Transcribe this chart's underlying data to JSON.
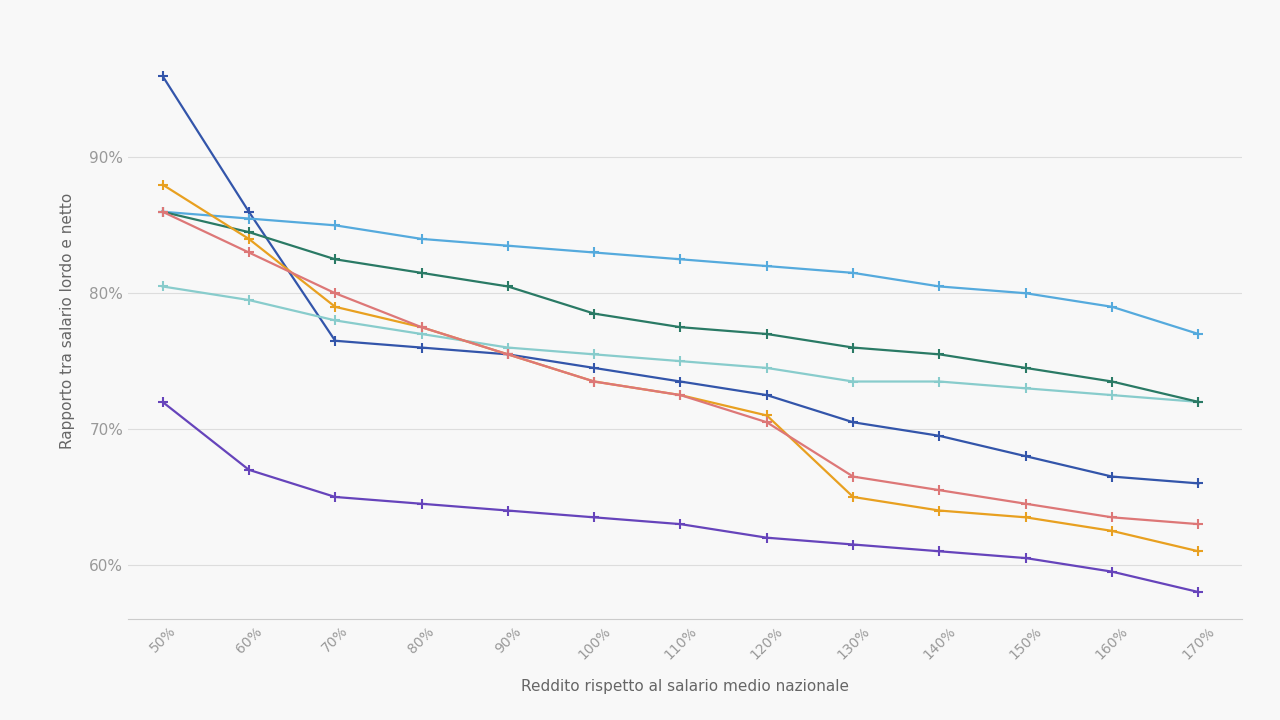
{
  "xlabel": "Reddito rispetto al salario medio nazionale",
  "ylabel": "Rapporto tra salario lordo e netto",
  "x_values": [
    50,
    60,
    70,
    80,
    90,
    100,
    110,
    120,
    130,
    140,
    150,
    160,
    170
  ],
  "series": [
    {
      "name": "darkblue",
      "color": "#3355aa",
      "values": [
        96.0,
        86.0,
        76.5,
        76.0,
        75.5,
        74.5,
        73.5,
        72.5,
        70.5,
        69.5,
        68.0,
        66.5,
        66.0
      ]
    },
    {
      "name": "lightblue",
      "color": "#55aadd",
      "values": [
        86.0,
        85.5,
        85.0,
        84.0,
        83.5,
        83.0,
        82.5,
        82.0,
        81.5,
        80.5,
        80.0,
        79.0,
        77.0
      ]
    },
    {
      "name": "cyan",
      "color": "#88cccc",
      "values": [
        80.5,
        79.5,
        78.0,
        77.0,
        76.0,
        75.5,
        75.0,
        74.5,
        73.5,
        73.5,
        73.0,
        72.5,
        72.0
      ]
    },
    {
      "name": "teal",
      "color": "#2a7a65",
      "values": [
        86.0,
        84.5,
        82.5,
        81.5,
        80.5,
        78.5,
        77.5,
        77.0,
        76.0,
        75.5,
        74.5,
        73.5,
        72.0
      ]
    },
    {
      "name": "orange",
      "color": "#e8a020",
      "values": [
        88.0,
        84.0,
        79.0,
        77.5,
        75.5,
        73.5,
        72.5,
        71.0,
        65.0,
        64.0,
        63.5,
        62.5,
        61.0
      ]
    },
    {
      "name": "pink",
      "color": "#dd7777",
      "values": [
        86.0,
        83.0,
        80.0,
        77.5,
        75.5,
        73.5,
        72.5,
        70.5,
        66.5,
        65.5,
        64.5,
        63.5,
        63.0
      ]
    },
    {
      "name": "purple",
      "color": "#6644bb",
      "values": [
        72.0,
        67.0,
        65.0,
        64.5,
        64.0,
        63.5,
        63.0,
        62.0,
        61.5,
        61.0,
        60.5,
        59.5,
        58.0
      ]
    }
  ],
  "ylim": [
    56,
    100
  ],
  "yticks": [
    60,
    70,
    80,
    90
  ],
  "background_color": "#f8f8f8",
  "grid_color": "#dddddd",
  "plot_bg": "#f8f8f8"
}
